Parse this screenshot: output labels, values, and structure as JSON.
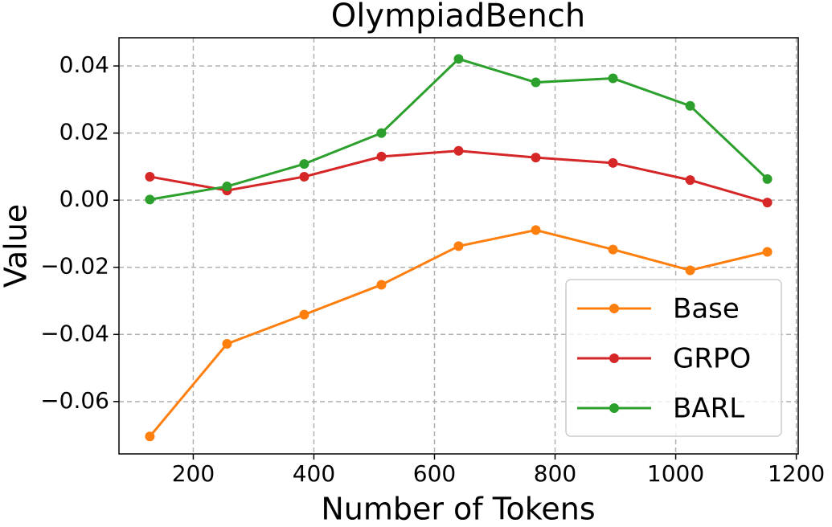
{
  "chart_data": {
    "type": "line",
    "title": "OlympiadBench",
    "xlabel": "Number of Tokens",
    "ylabel": "Value",
    "x": [
      128,
      256,
      384,
      512,
      640,
      768,
      896,
      1024,
      1152
    ],
    "series": [
      {
        "name": "Base",
        "color": "#ff7f0e",
        "values": [
          -0.0704,
          -0.0428,
          -0.0341,
          -0.0252,
          -0.0137,
          -0.0089,
          -0.0147,
          -0.0209,
          -0.0154
        ]
      },
      {
        "name": "GRPO",
        "color": "#d62728",
        "values": [
          0.007,
          0.0029,
          0.007,
          0.013,
          0.0147,
          0.0127,
          0.0111,
          0.006,
          -0.0007
        ]
      },
      {
        "name": "BARL",
        "color": "#2ca02c",
        "values": [
          0.0002,
          0.0041,
          0.0108,
          0.02,
          0.0421,
          0.0351,
          0.0363,
          0.0281,
          0.0063
        ]
      }
    ],
    "xlim": [
      76.8,
      1203.2
    ],
    "xticks": [
      200,
      400,
      600,
      800,
      1000,
      1200
    ],
    "ylim": [
      -0.0756,
      0.0484
    ],
    "yticks": [
      {
        "value": -0.06,
        "label": "−0.06"
      },
      {
        "value": -0.04,
        "label": "−0.04"
      },
      {
        "value": -0.02,
        "label": "−0.02"
      },
      {
        "value": 0,
        "label": "0.00"
      },
      {
        "value": 0.02,
        "label": "0.02"
      },
      {
        "value": 0.04,
        "label": "0.04"
      }
    ],
    "grid": true,
    "legend": "lower right"
  }
}
